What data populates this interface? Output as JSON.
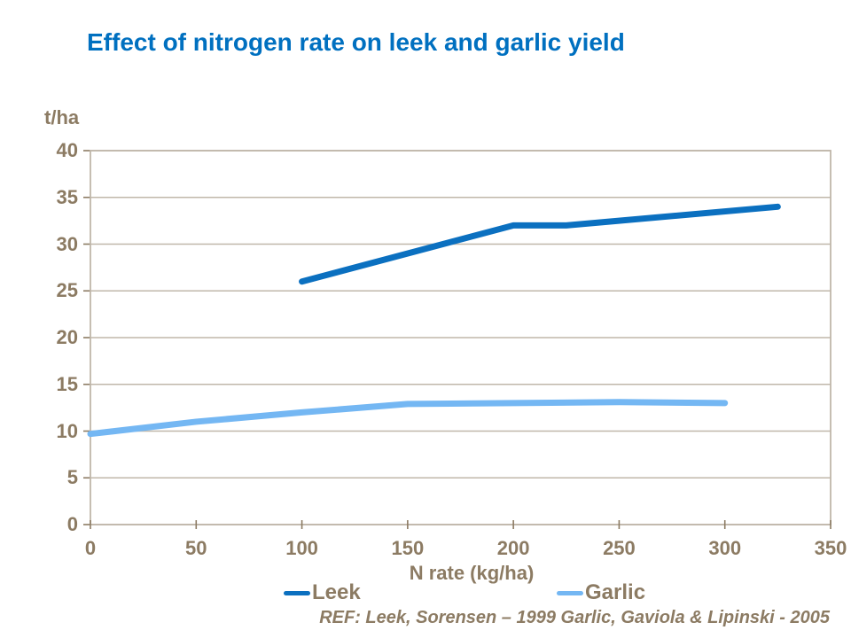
{
  "colors": {
    "title": "#0070C0",
    "axis_text": "#8C7B63",
    "grid": "#C0B7AA",
    "leek": "#0B70C0",
    "garlic": "#74B7F3",
    "background": "#FFFFFF"
  },
  "chart_data": {
    "type": "line",
    "title": "Effect of nitrogen rate on leek and garlic yield",
    "xlabel": "N rate (kg/ha)",
    "ylabel": "t/ha",
    "xlim": [
      0,
      350
    ],
    "ylim": [
      0,
      40
    ],
    "x_ticks": [
      0,
      50,
      100,
      150,
      200,
      250,
      300,
      350
    ],
    "y_ticks": [
      0,
      5,
      10,
      15,
      20,
      25,
      30,
      35,
      40
    ],
    "grid": "horizontal",
    "legend_position": "bottom",
    "series": [
      {
        "name": "Leek",
        "color_key": "leek",
        "x": [
          100,
          200,
          225,
          325
        ],
        "y": [
          26,
          32,
          32,
          34
        ]
      },
      {
        "name": "Garlic",
        "color_key": "garlic",
        "x": [
          0,
          50,
          100,
          150,
          200,
          250,
          300
        ],
        "y": [
          9.7,
          11,
          12,
          12.9,
          13,
          13.1,
          13
        ]
      }
    ],
    "ref_note": "REF: Leek, Sorensen – 1999 Garlic, Gaviola & Lipinski - 2005"
  }
}
